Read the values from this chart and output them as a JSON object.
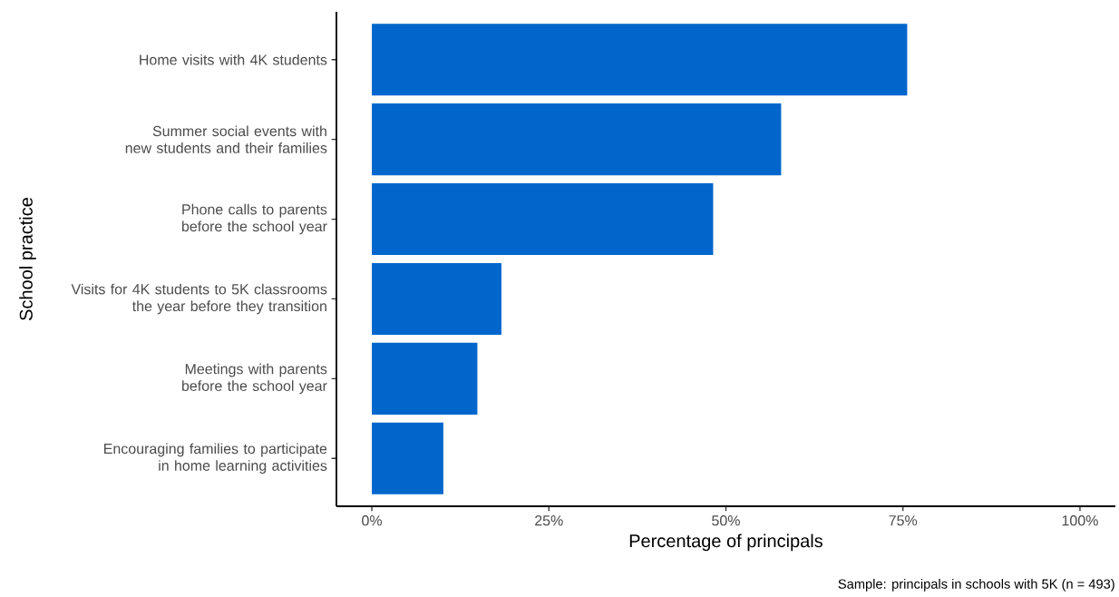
{
  "chart_data": {
    "type": "bar",
    "orientation": "horizontal",
    "categories": [
      "Home visits with 4K students",
      "Summer social events with new students and their families",
      "Phone calls to parents before the school year",
      "Visits for 4K students to 5K classrooms the year before they transition",
      "Meetings with parents before the school year",
      "Encouraging families to participate in home learning activities"
    ],
    "values": [
      75.6,
      57.8,
      48.2,
      18.3,
      14.9,
      10.1
    ],
    "color": "#0066cc",
    "xlim": [
      -5,
      105
    ],
    "xticks": [
      {
        "value": 0,
        "label": "0%"
      },
      {
        "value": 25,
        "label": "25%"
      },
      {
        "value": 50,
        "label": "50%"
      },
      {
        "value": 75,
        "label": "75%"
      },
      {
        "value": 100,
        "label": "100%"
      }
    ],
    "xlabel": "Percentage of principals",
    "ylabel": "School practice",
    "annotations": [
      "Sample: principals in schools with 5K (n = 493)"
    ]
  }
}
